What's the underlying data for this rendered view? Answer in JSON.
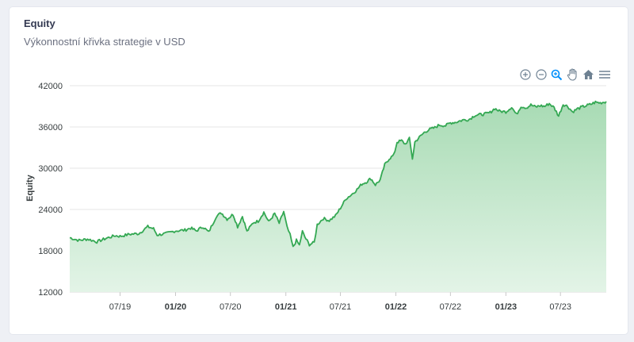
{
  "card": {
    "title": "Equity",
    "subtitle": "Výkonnostní křivka strategie v USD"
  },
  "toolbar": {
    "icons": [
      "zoom-in-icon",
      "zoom-out-icon",
      "selection-zoom-icon",
      "pan-hand-icon",
      "reset-home-icon",
      "menu-icon"
    ]
  },
  "colors": {
    "line": "#34a853",
    "fill_top": "#a8dbb4",
    "fill_bottom": "#e3f4e7",
    "grid": "#e6e6e6",
    "toolbar_active": "#008ffb",
    "toolbar_icon": "#6e8192"
  },
  "chart_data": {
    "type": "area",
    "ylabel": "Equity",
    "xlabel": "",
    "ylim": [
      12000,
      42000
    ],
    "y_ticks": [
      "12000",
      "18000",
      "24000",
      "30000",
      "36000",
      "42000"
    ],
    "x_ticks": [
      {
        "label": "07/19",
        "bold": false,
        "t": 0.0
      },
      {
        "label": "01/20",
        "bold": true,
        "t": 0.0
      },
      {
        "label": "07/20",
        "bold": false,
        "t": 0.0
      },
      {
        "label": "01/21",
        "bold": true,
        "t": 0.0
      },
      {
        "label": "07/21",
        "bold": false,
        "t": 0.0
      },
      {
        "label": "01/22",
        "bold": true,
        "t": 0.0
      },
      {
        "label": "07/22",
        "bold": false,
        "t": 0.0
      },
      {
        "label": "01/23",
        "bold": true,
        "t": 0.0
      },
      {
        "label": "07/23",
        "bold": false,
        "t": 0.0
      }
    ],
    "x_range": [
      "2019-01-15",
      "2023-11-30"
    ],
    "series": [
      {
        "name": "",
        "points": [
          [
            "2019-01-15",
            19900
          ],
          [
            "2019-02-15",
            19500
          ],
          [
            "2019-03-15",
            19700
          ],
          [
            "2019-04-15",
            19300
          ],
          [
            "2019-05-15",
            19800
          ],
          [
            "2019-06-15",
            20200
          ],
          [
            "2019-07-01",
            20100
          ],
          [
            "2019-08-01",
            20400
          ],
          [
            "2019-09-01",
            20500
          ],
          [
            "2019-10-01",
            21500
          ],
          [
            "2019-10-20",
            21200
          ],
          [
            "2019-11-01",
            20300
          ],
          [
            "2019-12-01",
            20500
          ],
          [
            "2020-01-01",
            20900
          ],
          [
            "2020-02-01",
            21000
          ],
          [
            "2020-02-20",
            21300
          ],
          [
            "2020-03-10",
            20900
          ],
          [
            "2020-04-01",
            21500
          ],
          [
            "2020-04-20",
            20700
          ],
          [
            "2020-05-15",
            23000
          ],
          [
            "2020-06-01",
            23500
          ],
          [
            "2020-06-20",
            22600
          ],
          [
            "2020-07-10",
            23300
          ],
          [
            "2020-07-25",
            21500
          ],
          [
            "2020-08-10",
            23000
          ],
          [
            "2020-08-25",
            20800
          ],
          [
            "2020-09-15",
            22100
          ],
          [
            "2020-10-01",
            22300
          ],
          [
            "2020-10-20",
            23600
          ],
          [
            "2020-11-05",
            22200
          ],
          [
            "2020-11-25",
            23400
          ],
          [
            "2020-12-10",
            22000
          ],
          [
            "2020-12-25",
            23700
          ],
          [
            "2021-01-05",
            21400
          ],
          [
            "2021-01-15",
            20300
          ],
          [
            "2021-01-25",
            18500
          ],
          [
            "2021-02-05",
            19500
          ],
          [
            "2021-02-15",
            18800
          ],
          [
            "2021-02-25",
            20800
          ],
          [
            "2021-03-05",
            20000
          ],
          [
            "2021-03-20",
            18900
          ],
          [
            "2021-04-05",
            19200
          ],
          [
            "2021-04-15",
            21800
          ],
          [
            "2021-05-05",
            22700
          ],
          [
            "2021-05-25",
            22400
          ],
          [
            "2021-06-15",
            23100
          ],
          [
            "2021-07-01",
            24200
          ],
          [
            "2021-07-20",
            25600
          ],
          [
            "2021-08-05",
            26100
          ],
          [
            "2021-08-25",
            26900
          ],
          [
            "2021-09-10",
            27700
          ],
          [
            "2021-09-25",
            28000
          ],
          [
            "2021-10-10",
            28500
          ],
          [
            "2021-10-25",
            27600
          ],
          [
            "2021-11-10",
            28300
          ],
          [
            "2021-11-25",
            30500
          ],
          [
            "2021-12-10",
            31400
          ],
          [
            "2021-12-25",
            31900
          ],
          [
            "2022-01-05",
            33800
          ],
          [
            "2022-01-20",
            34000
          ],
          [
            "2022-02-01",
            33500
          ],
          [
            "2022-02-15",
            34300
          ],
          [
            "2022-02-25",
            31400
          ],
          [
            "2022-03-05",
            33800
          ],
          [
            "2022-03-20",
            34500
          ],
          [
            "2022-04-05",
            35200
          ],
          [
            "2022-04-20",
            35600
          ],
          [
            "2022-05-10",
            35900
          ],
          [
            "2022-05-25",
            36300
          ],
          [
            "2022-06-15",
            36200
          ],
          [
            "2022-07-01",
            36600
          ],
          [
            "2022-07-20",
            36700
          ],
          [
            "2022-08-10",
            37000
          ],
          [
            "2022-09-01",
            37100
          ],
          [
            "2022-09-20",
            37700
          ],
          [
            "2022-10-10",
            37800
          ],
          [
            "2022-10-25",
            37900
          ],
          [
            "2022-11-10",
            38100
          ],
          [
            "2022-11-25",
            38700
          ],
          [
            "2022-12-10",
            38300
          ],
          [
            "2023-01-01",
            38200
          ],
          [
            "2023-01-20",
            38900
          ],
          [
            "2023-02-05",
            37800
          ],
          [
            "2023-02-20",
            39000
          ],
          [
            "2023-03-10",
            38800
          ],
          [
            "2023-03-25",
            39200
          ],
          [
            "2023-04-10",
            38900
          ],
          [
            "2023-04-25",
            39100
          ],
          [
            "2023-05-10",
            39000
          ],
          [
            "2023-05-25",
            39400
          ],
          [
            "2023-06-10",
            38800
          ],
          [
            "2023-06-25",
            37600
          ],
          [
            "2023-07-10",
            39300
          ],
          [
            "2023-07-25",
            39000
          ],
          [
            "2023-08-10",
            38200
          ],
          [
            "2023-08-25",
            38600
          ],
          [
            "2023-09-10",
            38900
          ],
          [
            "2023-09-25",
            39100
          ],
          [
            "2023-10-10",
            39300
          ],
          [
            "2023-10-25",
            39600
          ],
          [
            "2023-11-10",
            39500
          ],
          [
            "2023-11-30",
            39700
          ]
        ]
      }
    ],
    "grid": true,
    "legend": "none"
  }
}
